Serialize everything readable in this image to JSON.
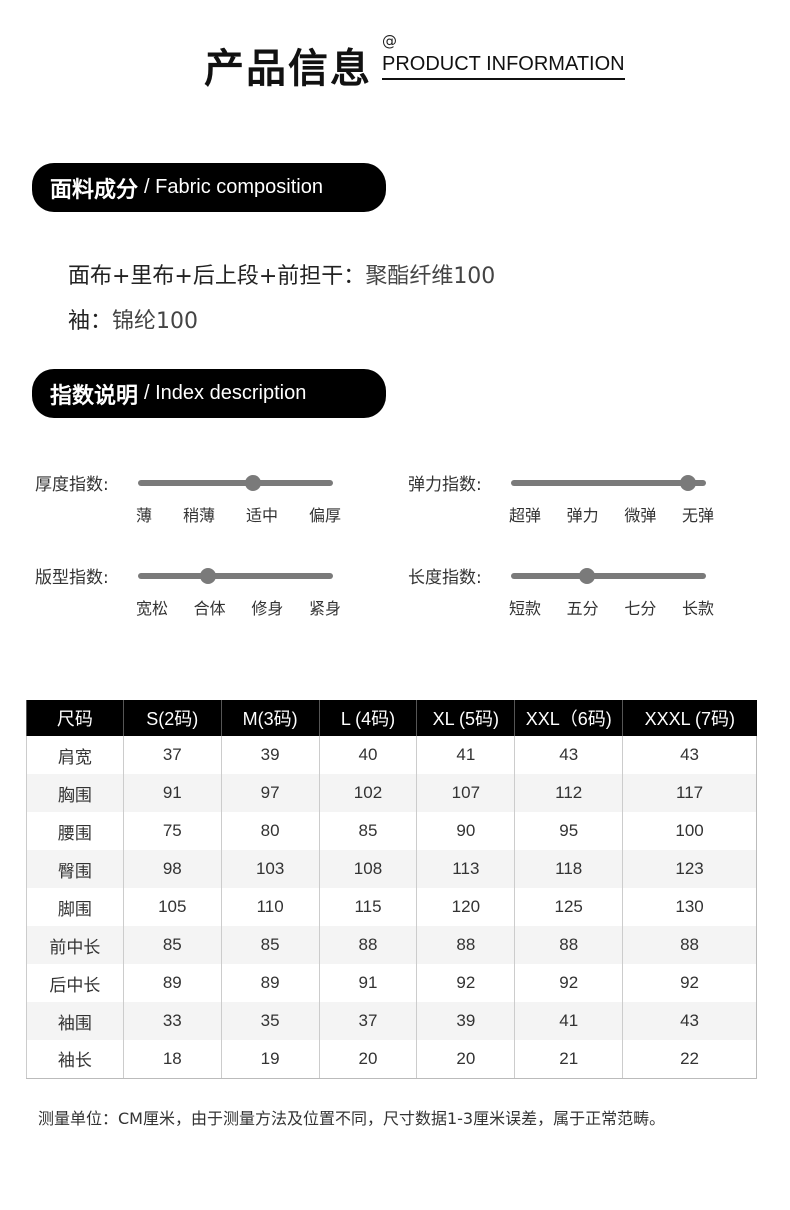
{
  "header": {
    "title_cn": "产品信息",
    "at": "@",
    "title_en": "PRODUCT INFORMATION"
  },
  "fabric": {
    "title_cn": "面料成分",
    "title_en": "/ Fabric composition",
    "lines": [
      {
        "label": "面布+里布+后上段+前担干：",
        "value": "聚酯纤维100"
      },
      {
        "label": "袖：",
        "value": "锦纶100"
      }
    ]
  },
  "index": {
    "title_cn": "指数说明",
    "title_en": "/ Index description",
    "sliders": [
      {
        "label": "厚度指数:",
        "ticks": [
          "薄",
          "稍薄",
          "适中",
          "偏厚"
        ],
        "value": 0.59
      },
      {
        "label": "弹力指数:",
        "ticks": [
          "超弹",
          "弹力",
          "微弹",
          "无弹"
        ],
        "value": 0.91
      },
      {
        "label": "版型指数:",
        "ticks": [
          "宽松",
          "合体",
          "修身",
          "紧身"
        ],
        "value": 0.36
      },
      {
        "label": "长度指数:",
        "ticks": [
          "短款",
          "五分",
          "七分",
          "长款"
        ],
        "value": 0.39
      }
    ]
  },
  "size_table": {
    "headers": [
      "尺码",
      "S(2码)",
      "M(3码)",
      "L (4码)",
      "XL (5码)",
      "XXL（6码)",
      "XXXL (7码)"
    ],
    "rows": [
      [
        "肩宽",
        "37",
        "39",
        "40",
        "41",
        "43",
        "43"
      ],
      [
        "胸围",
        "91",
        "97",
        "102",
        "107",
        "112",
        "117"
      ],
      [
        "腰围",
        "75",
        "80",
        "85",
        "90",
        "95",
        "100"
      ],
      [
        "臀围",
        "98",
        "103",
        "108",
        "113",
        "118",
        "123"
      ],
      [
        "脚围",
        "105",
        "110",
        "115",
        "120",
        "125",
        "130"
      ],
      [
        "前中长",
        "85",
        "85",
        "88",
        "88",
        "88",
        "88"
      ],
      [
        "后中长",
        "89",
        "89",
        "91",
        "92",
        "92",
        "92"
      ],
      [
        "袖围",
        "33",
        "35",
        "37",
        "39",
        "41",
        "43"
      ],
      [
        "袖长",
        "18",
        "19",
        "20",
        "20",
        "21",
        "22"
      ]
    ]
  },
  "note": "测量单位：CM厘米，由于测量方法及位置不同，尺寸数据1-3厘米误差，属于正常范畴。"
}
